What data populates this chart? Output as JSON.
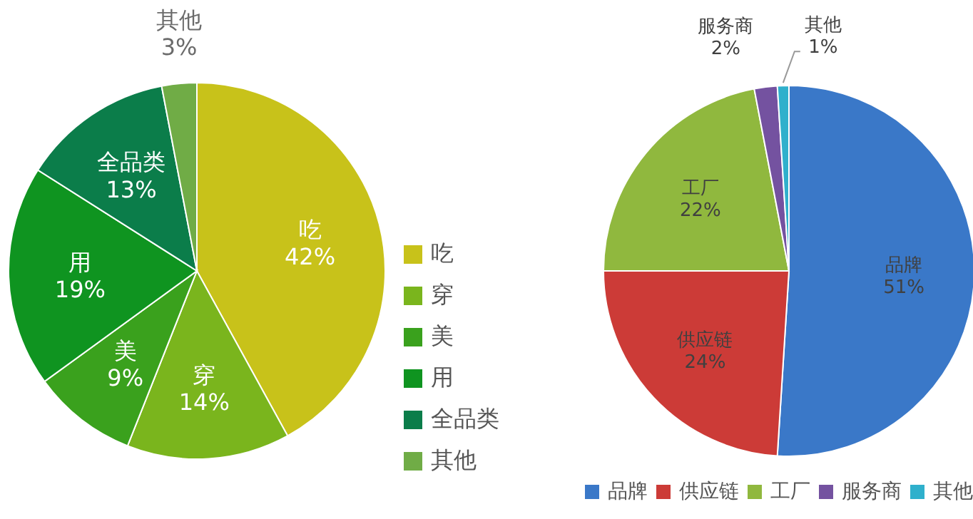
{
  "chart_data": [
    {
      "type": "pie",
      "categories": [
        "吃",
        "穿",
        "美",
        "用",
        "全品类",
        "其他"
      ],
      "values": [
        42,
        14,
        9,
        19,
        13,
        3
      ],
      "value_labels": [
        "42%",
        "14%",
        "9%",
        "19%",
        "13%",
        "3%"
      ],
      "colors": [
        "#c8c21a",
        "#7ab51d",
        "#3aa11d",
        "#0f9420",
        "#0b7d4a",
        "#70ac46"
      ],
      "legend": "right"
    },
    {
      "type": "pie",
      "categories": [
        "品牌",
        "供应链",
        "工厂",
        "服务商",
        "其他"
      ],
      "values": [
        51,
        24,
        22,
        2,
        1
      ],
      "value_labels": [
        "51%",
        "24%",
        "22%",
        "2%",
        "1%"
      ],
      "colors": [
        "#3a78c8",
        "#cc3b37",
        "#90b83e",
        "#7452a0",
        "#2fb0cc"
      ],
      "legend": "bottom"
    }
  ]
}
